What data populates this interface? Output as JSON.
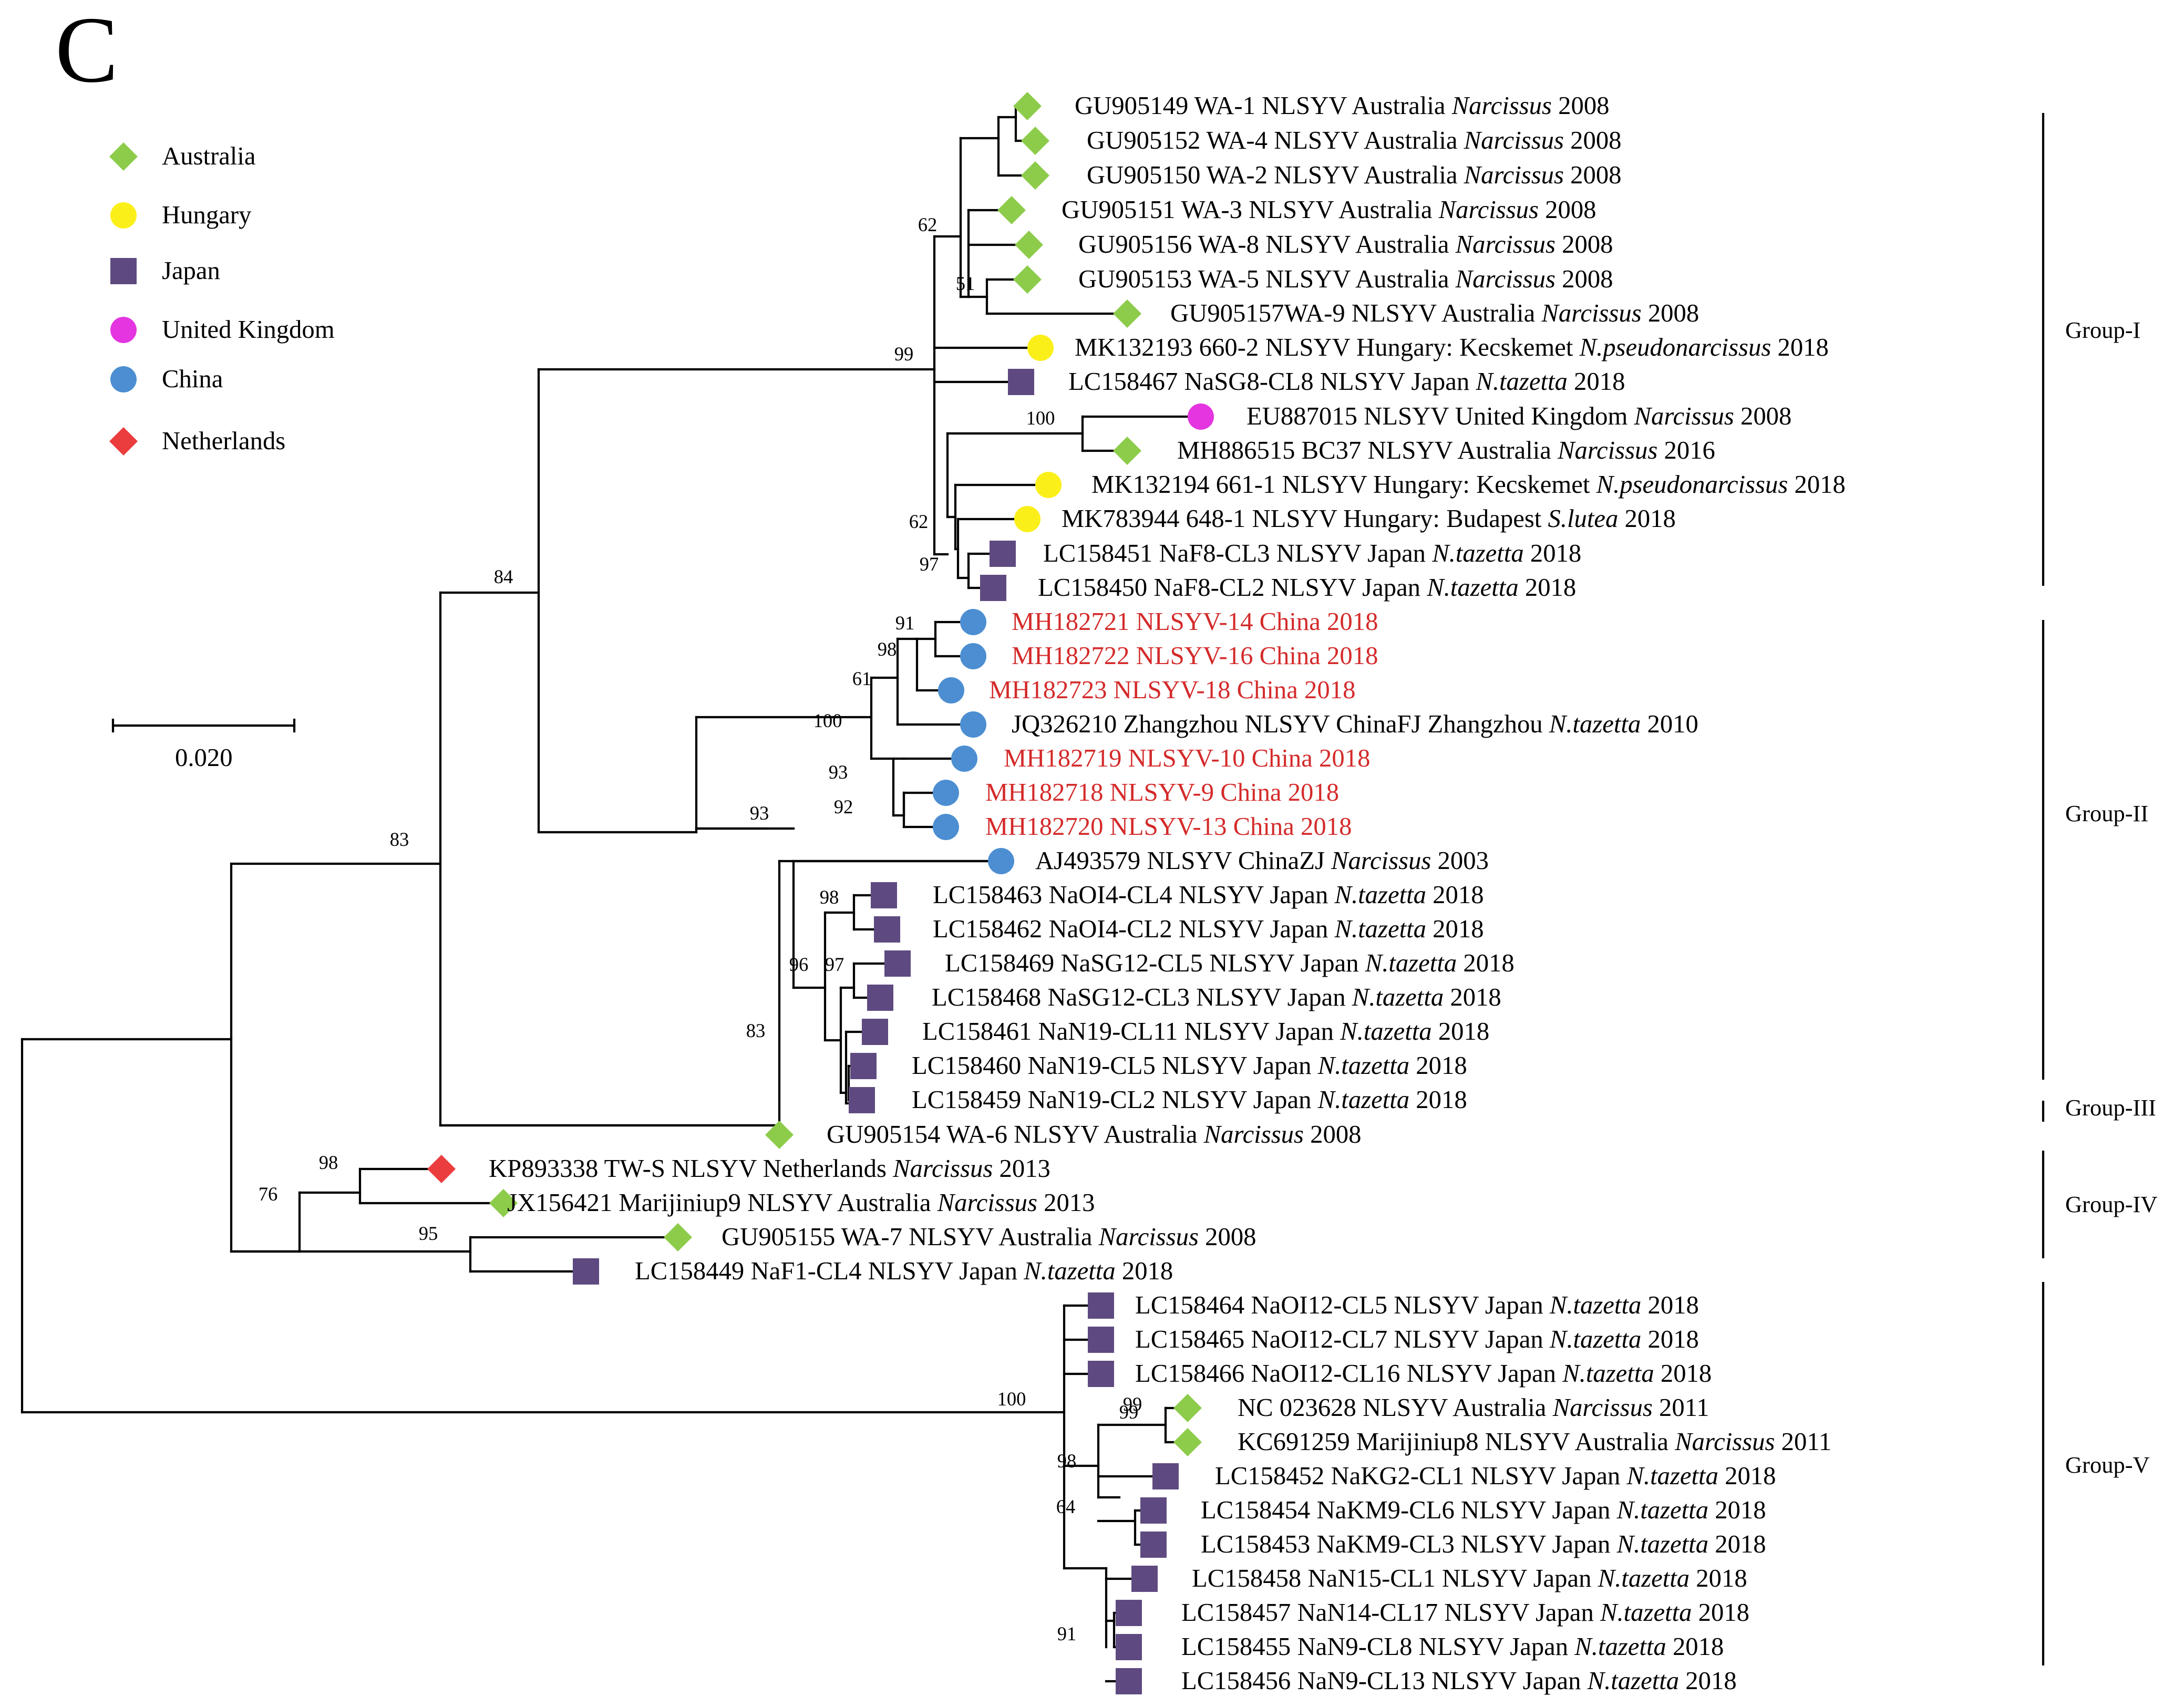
{
  "panel_letter": "C",
  "colors": {
    "Australia": "#8dcc4b",
    "Hungary": "#fbef1a",
    "Japan": "#5e4a80",
    "United Kingdom": "#e435e0",
    "China": "#4c8ed1",
    "Netherlands": "#eb3d3d",
    "highlight_text": "#d42a2a",
    "line": "#000000"
  },
  "legend": [
    {
      "country": "Australia",
      "shape": "diamond"
    },
    {
      "country": "Hungary",
      "shape": "circle"
    },
    {
      "country": "Japan",
      "shape": "square"
    },
    {
      "country": "United Kingdom",
      "shape": "circle"
    },
    {
      "country": "China",
      "shape": "circle"
    },
    {
      "country": "Netherlands",
      "shape": "diamond"
    }
  ],
  "scale_bar": {
    "label": "0.020",
    "value": 0.02
  },
  "leaves": [
    {
      "parts": [
        {
          "t": "GU905149 WA-1 NLSYV Australia "
        },
        {
          "t": "Narcissus",
          "i": true
        },
        {
          "t": " 2008"
        }
      ],
      "country": "Australia"
    },
    {
      "parts": [
        {
          "t": "GU905152 WA-4 NLSYV Australia "
        },
        {
          "t": "Narcissus",
          "i": true
        },
        {
          "t": " 2008"
        }
      ],
      "country": "Australia"
    },
    {
      "parts": [
        {
          "t": "GU905150 WA-2 NLSYV Australia "
        },
        {
          "t": "Narcissus",
          "i": true
        },
        {
          "t": " 2008"
        }
      ],
      "country": "Australia"
    },
    {
      "parts": [
        {
          "t": "GU905151 WA-3 NLSYV Australia "
        },
        {
          "t": "Narcissus",
          "i": true
        },
        {
          "t": " 2008"
        }
      ],
      "country": "Australia"
    },
    {
      "parts": [
        {
          "t": "GU905156 WA-8 NLSYV Australia "
        },
        {
          "t": "Narcissus",
          "i": true
        },
        {
          "t": " 2008"
        }
      ],
      "country": "Australia"
    },
    {
      "parts": [
        {
          "t": "GU905153 WA-5 NLSYV Australia "
        },
        {
          "t": "Narcissus",
          "i": true
        },
        {
          "t": " 2008"
        }
      ],
      "country": "Australia"
    },
    {
      "parts": [
        {
          "t": "GU905157WA-9 NLSYV Australia "
        },
        {
          "t": "Narcissus",
          "i": true
        },
        {
          "t": " 2008"
        }
      ],
      "country": "Australia"
    },
    {
      "parts": [
        {
          "t": "MK132193 660-2 NLSYV Hungary: Kecskemet "
        },
        {
          "t": "N.pseudonarcissus",
          "i": true
        },
        {
          "t": " 2018"
        }
      ],
      "country": "Hungary"
    },
    {
      "parts": [
        {
          "t": "LC158467 NaSG8-CL8 NLSYV Japan "
        },
        {
          "t": "N.tazetta",
          "i": true
        },
        {
          "t": " 2018"
        }
      ],
      "country": "Japan"
    },
    {
      "parts": [
        {
          "t": "EU887015 NLSYV United Kingdom "
        },
        {
          "t": "Narcissus",
          "i": true
        },
        {
          "t": " 2008"
        }
      ],
      "country": "United Kingdom"
    },
    {
      "parts": [
        {
          "t": "MH886515 BC37 NLSYV Australia "
        },
        {
          "t": "Narcissus",
          "i": true
        },
        {
          "t": " 2016"
        }
      ],
      "country": "Australia"
    },
    {
      "parts": [
        {
          "t": "MK132194 661-1 NLSYV Hungary: Kecskemet "
        },
        {
          "t": "N.pseudonarcissus",
          "i": true
        },
        {
          "t": " 2018"
        }
      ],
      "country": "Hungary"
    },
    {
      "parts": [
        {
          "t": "MK783944 648-1 NLSYV Hungary: Budapest "
        },
        {
          "t": "S.lutea",
          "i": true
        },
        {
          "t": " 2018"
        }
      ],
      "country": "Hungary"
    },
    {
      "parts": [
        {
          "t": "LC158451 NaF8-CL3 NLSYV Japan "
        },
        {
          "t": "N.tazetta",
          "i": true
        },
        {
          "t": " 2018"
        }
      ],
      "country": "Japan"
    },
    {
      "parts": [
        {
          "t": "LC158450 NaF8-CL2 NLSYV Japan "
        },
        {
          "t": "N.tazetta",
          "i": true
        },
        {
          "t": " 2018"
        }
      ],
      "country": "Japan"
    },
    {
      "parts": [
        {
          "t": "MH182721 NLSYV-14 China 2018"
        }
      ],
      "country": "China",
      "highlight": true
    },
    {
      "parts": [
        {
          "t": "MH182722 NLSYV-16 China 2018"
        }
      ],
      "country": "China",
      "highlight": true
    },
    {
      "parts": [
        {
          "t": "MH182723 NLSYV-18 China 2018"
        }
      ],
      "country": "China",
      "highlight": true
    },
    {
      "parts": [
        {
          "t": "JQ326210 Zhangzhou NLSYV ChinaFJ Zhangzhou "
        },
        {
          "t": "N.tazetta",
          "i": true
        },
        {
          "t": " 2010"
        }
      ],
      "country": "China"
    },
    {
      "parts": [
        {
          "t": "MH182719 NLSYV-10 China 2018"
        }
      ],
      "country": "China",
      "highlight": true
    },
    {
      "parts": [
        {
          "t": "MH182718 NLSYV-9 China 2018"
        }
      ],
      "country": "China",
      "highlight": true
    },
    {
      "parts": [
        {
          "t": "MH182720 NLSYV-13 China 2018"
        }
      ],
      "country": "China",
      "highlight": true
    },
    {
      "parts": [
        {
          "t": "AJ493579 NLSYV ChinaZJ "
        },
        {
          "t": "Narcissus",
          "i": true
        },
        {
          "t": " 2003"
        }
      ],
      "country": "China"
    },
    {
      "parts": [
        {
          "t": "LC158463 NaOI4-CL4 NLSYV Japan "
        },
        {
          "t": "N.tazetta",
          "i": true
        },
        {
          "t": " 2018"
        }
      ],
      "country": "Japan"
    },
    {
      "parts": [
        {
          "t": "LC158462 NaOI4-CL2 NLSYV Japan "
        },
        {
          "t": "N.tazetta",
          "i": true
        },
        {
          "t": " 2018"
        }
      ],
      "country": "Japan"
    },
    {
      "parts": [
        {
          "t": "LC158469 NaSG12-CL5 NLSYV Japan "
        },
        {
          "t": "N.tazetta",
          "i": true
        },
        {
          "t": " 2018"
        }
      ],
      "country": "Japan"
    },
    {
      "parts": [
        {
          "t": "LC158468 NaSG12-CL3 NLSYV Japan "
        },
        {
          "t": "N.tazetta",
          "i": true
        },
        {
          "t": " 2018"
        }
      ],
      "country": "Japan"
    },
    {
      "parts": [
        {
          "t": "LC158461 NaN19-CL11 NLSYV Japan "
        },
        {
          "t": "N.tazetta",
          "i": true
        },
        {
          "t": " 2018"
        }
      ],
      "country": "Japan"
    },
    {
      "parts": [
        {
          "t": "LC158460 NaN19-CL5 NLSYV Japan "
        },
        {
          "t": "N.tazetta",
          "i": true
        },
        {
          "t": " 2018"
        }
      ],
      "country": "Japan"
    },
    {
      "parts": [
        {
          "t": "LC158459 NaN19-CL2 NLSYV Japan "
        },
        {
          "t": "N.tazetta",
          "i": true
        },
        {
          "t": " 2018"
        }
      ],
      "country": "Japan"
    },
    {
      "parts": [
        {
          "t": "GU905154 WA-6 NLSYV Australia "
        },
        {
          "t": "Narcissus",
          "i": true
        },
        {
          "t": " 2008"
        }
      ],
      "country": "Australia"
    },
    {
      "parts": [
        {
          "t": "KP893338 TW-S NLSYV Netherlands "
        },
        {
          "t": "Narcissus",
          "i": true
        },
        {
          "t": " 2013"
        }
      ],
      "country": "Netherlands"
    },
    {
      "parts": [
        {
          "t": "JX156421 Marijiniup9 NLSYV Australia "
        },
        {
          "t": "Narcissus",
          "i": true
        },
        {
          "t": " 2013"
        }
      ],
      "country": "Australia"
    },
    {
      "parts": [
        {
          "t": "GU905155 WA-7 NLSYV Australia "
        },
        {
          "t": "Narcissus",
          "i": true
        },
        {
          "t": " 2008"
        }
      ],
      "country": "Australia"
    },
    {
      "parts": [
        {
          "t": "LC158449 NaF1-CL4 NLSYV Japan "
        },
        {
          "t": "N.tazetta",
          "i": true
        },
        {
          "t": " 2018"
        }
      ],
      "country": "Japan"
    },
    {
      "parts": [
        {
          "t": "LC158464 NaOI12-CL5 NLSYV Japan "
        },
        {
          "t": "N.tazetta",
          "i": true
        },
        {
          "t": " 2018"
        }
      ],
      "country": "Japan"
    },
    {
      "parts": [
        {
          "t": "LC158465 NaOI12-CL7 NLSYV Japan "
        },
        {
          "t": "N.tazetta",
          "i": true
        },
        {
          "t": " 2018"
        }
      ],
      "country": "Japan"
    },
    {
      "parts": [
        {
          "t": "LC158466 NaOI12-CL16 NLSYV Japan "
        },
        {
          "t": "N.tazetta",
          "i": true
        },
        {
          "t": " 2018"
        }
      ],
      "country": "Japan"
    },
    {
      "parts": [
        {
          "t": "NC 023628 NLSYV Australia "
        },
        {
          "t": "Narcissus",
          "i": true
        },
        {
          "t": " 2011"
        }
      ],
      "country": "Australia"
    },
    {
      "parts": [
        {
          "t": "KC691259 Marijiniup8 NLSYV Australia "
        },
        {
          "t": "Narcissus",
          "i": true
        },
        {
          "t": " 2011"
        }
      ],
      "country": "Australia"
    },
    {
      "parts": [
        {
          "t": "LC158452 NaKG2-CL1 NLSYV Japan "
        },
        {
          "t": "N.tazetta",
          "i": true
        },
        {
          "t": " 2018"
        }
      ],
      "country": "Japan"
    },
    {
      "parts": [
        {
          "t": "LC158454 NaKM9-CL6 NLSYV Japan "
        },
        {
          "t": "N.tazetta",
          "i": true
        },
        {
          "t": " 2018"
        }
      ],
      "country": "Japan"
    },
    {
      "parts": [
        {
          "t": "LC158453 NaKM9-CL3 NLSYV Japan "
        },
        {
          "t": "N.tazetta",
          "i": true
        },
        {
          "t": " 2018"
        }
      ],
      "country": "Japan"
    },
    {
      "parts": [
        {
          "t": "LC158458 NaN15-CL1 NLSYV Japan "
        },
        {
          "t": "N.tazetta",
          "i": true
        },
        {
          "t": " 2018"
        }
      ],
      "country": "Japan"
    },
    {
      "parts": [
        {
          "t": "LC158457 NaN14-CL17 NLSYV Japan "
        },
        {
          "t": "N.tazetta",
          "i": true
        },
        {
          "t": " 2018"
        }
      ],
      "country": "Japan"
    },
    {
      "parts": [
        {
          "t": "LC158455 NaN9-CL8 NLSYV Japan "
        },
        {
          "t": "N.tazetta",
          "i": true
        },
        {
          "t": " 2018"
        }
      ],
      "country": "Japan"
    },
    {
      "parts": [
        {
          "t": "LC158456 NaN9-CL13 NLSYV Japan "
        },
        {
          "t": "N.tazetta",
          "i": true
        },
        {
          "t": " 2018"
        }
      ],
      "country": "Japan"
    }
  ],
  "bootstrap_values": [
    "62",
    "51",
    "99",
    "100",
    "62",
    "97",
    "84",
    "91",
    "98",
    "61",
    "100",
    "93",
    "92",
    "99",
    "93",
    "98",
    "97",
    "96",
    "83",
    "83",
    "98",
    "76",
    "95",
    "100",
    "99",
    "98",
    "64",
    "91"
  ],
  "groups": [
    {
      "label": "Group-I"
    },
    {
      "label": "Group-II"
    },
    {
      "label": "Group-III"
    },
    {
      "label": "Group-IV"
    },
    {
      "label": "Group-V"
    }
  ]
}
